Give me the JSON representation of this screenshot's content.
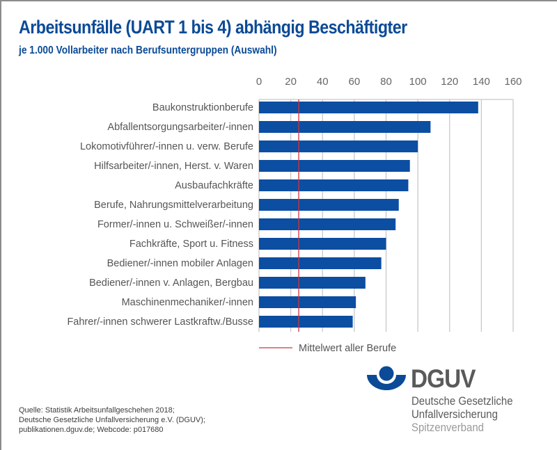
{
  "chart_data": {
    "type": "bar",
    "orientation": "horizontal",
    "title": "Arbeitsunfälle (UART 1 bis 4) abhängig Beschäftigter",
    "subtitle": "je 1.000 Vollarbeiter nach Berufsuntergruppen (Auswahl)",
    "xlabel": "",
    "ylabel": "",
    "xlim": [
      0,
      160
    ],
    "xticks": [
      0,
      20,
      40,
      60,
      80,
      100,
      120,
      140,
      160
    ],
    "tick_labels": [
      "0",
      "20",
      "40",
      "60",
      "80",
      "100",
      "120",
      "140",
      "160"
    ],
    "grid": true,
    "axis_position": "top",
    "categories": [
      "Baukonstruktionberufe",
      "Abfallentsorgungsarbeiter/-innen",
      "Lokomotivführer/-innen u. verw. Berufe",
      "Hilfsarbeiter/-innen, Herst. v. Waren",
      "Ausbaufachkräfte",
      "Berufe, Nahrungsmittelverarbeitung",
      "Former/-innen u. Schweißer/-innen",
      "Fachkräfte, Sport u. Fitness",
      "Bediener/-innen mobiler Anlagen",
      "Bediener/-innen v. Anlagen, Bergbau",
      "Maschinenmechaniker/-innen",
      "Fahrer/-innen schwerer Lastkraftw./Busse"
    ],
    "values": [
      138,
      108,
      100,
      95,
      94,
      88,
      86,
      80,
      77,
      67,
      61,
      59
    ],
    "reference_line": {
      "label": "Mittelwert aller Berufe",
      "value": 25
    },
    "legend": {
      "position": "bottom",
      "entries": [
        "Mittelwert aller Berufe"
      ]
    },
    "colors": {
      "bar": "#0b4ea2",
      "reference_line": "#d0343f",
      "grid": "#c8c8c8"
    }
  },
  "source": [
    "Quelle: Statistik Arbeitsunfallgeschehen 2018;",
    "Deutsche Gesetzliche Unfallversicherung e.V. (DGUV);",
    "publikationen.dguv.de; Webcode: p017680"
  ],
  "logo": {
    "name": "DGUV",
    "line1": "Deutsche Gesetzliche",
    "line2": "Unfallversicherung",
    "line3": "Spitzenverband",
    "color": "#0b4a96"
  }
}
